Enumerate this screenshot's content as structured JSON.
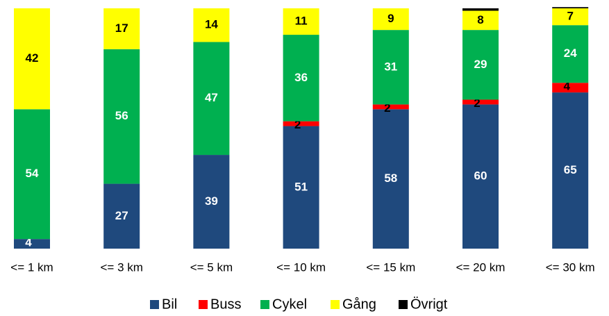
{
  "chart_data": {
    "type": "stacked_bar",
    "categories": [
      "<= 1 km",
      "<= 3 km",
      "<= 5 km",
      "<= 10 km",
      "<= 15 km",
      "<= 20 km",
      "<= 30 km"
    ],
    "series": [
      {
        "name": "Bil",
        "color": "#1f497d",
        "label_color": "#ffffff",
        "values": [
          4,
          27,
          39,
          51,
          58,
          60,
          65
        ]
      },
      {
        "name": "Buss",
        "color": "#ff0000",
        "label_color": "#000000",
        "values": [
          0,
          0,
          0,
          2,
          2,
          2,
          4
        ]
      },
      {
        "name": "Cykel",
        "color": "#00b050",
        "label_color": "#ffffff",
        "values": [
          54,
          56,
          47,
          36,
          31,
          29,
          24
        ]
      },
      {
        "name": "Gång",
        "color": "#ffff00",
        "label_color": "#000000",
        "values": [
          42,
          17,
          14,
          11,
          9,
          8,
          7
        ]
      },
      {
        "name": "Övrigt",
        "color": "#000000",
        "data_labels": false,
        "values": [
          0,
          0,
          0,
          0,
          0,
          1,
          0.5
        ]
      }
    ],
    "ylim": [
      0,
      100
    ],
    "legend": "bottom"
  }
}
